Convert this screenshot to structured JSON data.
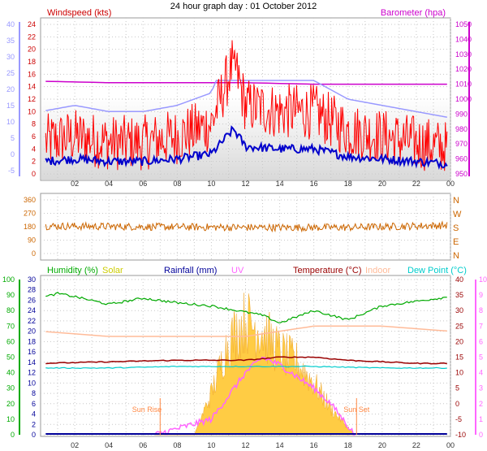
{
  "title": "24 hour graph day : 01 October 2012",
  "colors": {
    "windspeed": "#ff0000",
    "gust": "#0000cc",
    "avg_wind": "#9999ff",
    "barometer": "#cc00cc",
    "direction": "#cc6600",
    "humidity": "#00aa00",
    "solar": "#ffcc44",
    "rainfall": "#000099",
    "uv": "#ff66ff",
    "temperature": "#990000",
    "indoor": "#ffbb99",
    "dewpoint": "#00cccc",
    "sun_marker": "#ff8844"
  },
  "panels": {
    "wind": {
      "left_label": "Windspeed (kts)",
      "right_label": "Barometer (hpa)"
    },
    "direction": {
      "compass": [
        "N",
        "W",
        "S",
        "E",
        "N"
      ]
    },
    "temp": {
      "legend": [
        "Humidity (%)",
        "Solar",
        "Rainfall (mm)",
        "UV",
        "Temperature (°C)",
        "Indoor",
        "Dew Point (°C)"
      ],
      "sun_rise": "Sun Rise",
      "sun_set": "Sun Set"
    }
  },
  "chart_data": [
    {
      "type": "line",
      "title": "24 hour graph day : 01 October 2012",
      "x_ticks": [
        "02",
        "04",
        "06",
        "08",
        "10",
        "12",
        "14",
        "16",
        "18",
        "20",
        "22",
        "00"
      ],
      "axes": {
        "windspeed_kts": [
          0,
          2,
          4,
          6,
          8,
          10,
          12,
          14,
          16,
          18,
          20,
          22,
          24
        ],
        "secondary_left": [
          -5,
          0,
          5,
          10,
          15,
          20,
          25,
          30,
          35,
          40
        ],
        "barometer_hpa": [
          950,
          960,
          970,
          980,
          990,
          1000,
          1010,
          1020,
          1030,
          1040,
          1050
        ]
      },
      "ylabel_left": "Windspeed (kts)",
      "ylabel_right": "Barometer (hpa)",
      "series": [
        {
          "name": "Windspeed (kts)",
          "hours": [
            0,
            2,
            4,
            6,
            8,
            10,
            11.3,
            12,
            14,
            16,
            18,
            20,
            22,
            24
          ],
          "values": [
            5,
            6,
            5,
            5,
            6,
            8,
            18,
            11,
            10,
            10,
            7,
            6,
            5,
            4
          ]
        },
        {
          "name": "Barometer (hpa)",
          "hours": [
            0,
            4,
            8,
            12,
            16,
            20,
            24
          ],
          "values": [
            1012,
            1011,
            1011,
            1011,
            1010,
            1010,
            1010
          ]
        }
      ]
    },
    {
      "type": "line",
      "x_ticks": [
        "02",
        "04",
        "06",
        "08",
        "10",
        "12",
        "14",
        "16",
        "18",
        "20",
        "22",
        "00"
      ],
      "axes": {
        "direction_deg": [
          0,
          90,
          180,
          270,
          360
        ]
      },
      "series": [
        {
          "name": "Wind direction",
          "hours": [
            0,
            6,
            12,
            18,
            24
          ],
          "values": [
            185,
            180,
            175,
            175,
            190
          ]
        }
      ]
    },
    {
      "type": "line",
      "x_ticks": [
        "02",
        "04",
        "06",
        "08",
        "10",
        "12",
        "14",
        "16",
        "18",
        "20",
        "22",
        "00"
      ],
      "axes": {
        "humidity": [
          0,
          10,
          20,
          30,
          40,
          50,
          60,
          70,
          80,
          90,
          100
        ],
        "solar_rain": [
          0,
          2,
          4,
          6,
          8,
          10,
          12,
          14,
          16,
          18,
          20,
          22,
          24,
          26,
          28,
          30
        ],
        "temperature": [
          -10,
          -5,
          0,
          5,
          10,
          15,
          20,
          25,
          30,
          35,
          40
        ],
        "uv": [
          0,
          1,
          2,
          3,
          4,
          5,
          6,
          7,
          8,
          9,
          10
        ]
      },
      "series": [
        {
          "name": "Humidity (%)",
          "hours": [
            0,
            1,
            2,
            4,
            6,
            8,
            10,
            12,
            13,
            14,
            16,
            18,
            20,
            22,
            24
          ],
          "values": [
            88,
            91,
            89,
            84,
            88,
            85,
            83,
            79,
            77,
            72,
            80,
            74,
            83,
            86,
            89
          ]
        },
        {
          "name": "Indoor",
          "hours": [
            0,
            4,
            8,
            12,
            16,
            20,
            24
          ],
          "values": [
            20,
            19,
            19,
            19,
            21,
            21,
            20
          ]
        },
        {
          "name": "Temperature (°C)",
          "hours": [
            0,
            4,
            8,
            12,
            14,
            16,
            18,
            20,
            22,
            24
          ],
          "values": [
            13,
            13.5,
            14,
            14,
            15,
            15,
            14,
            13.5,
            13,
            13
          ]
        },
        {
          "name": "Dew Point (°C)",
          "hours": [
            0,
            4,
            8,
            12,
            16,
            20,
            24
          ],
          "values": [
            11.5,
            11.5,
            12,
            12,
            12,
            11.5,
            11.5
          ]
        },
        {
          "name": "Solar",
          "hours": [
            6.7,
            9,
            10,
            11,
            12,
            13,
            14,
            15,
            16,
            17,
            18.4
          ],
          "values": [
            0,
            0,
            8,
            18,
            22,
            20,
            16,
            14,
            10,
            5,
            0
          ]
        },
        {
          "name": "UV",
          "hours": [
            6.7,
            10,
            12,
            13,
            14,
            16,
            17,
            18.4
          ],
          "values": [
            0,
            1,
            4,
            5,
            4.5,
            3,
            2,
            0
          ]
        }
      ],
      "markers": [
        {
          "label": "Sun Rise",
          "hour": 7
        },
        {
          "label": "Sun Set",
          "hour": 18.5
        }
      ]
    }
  ]
}
